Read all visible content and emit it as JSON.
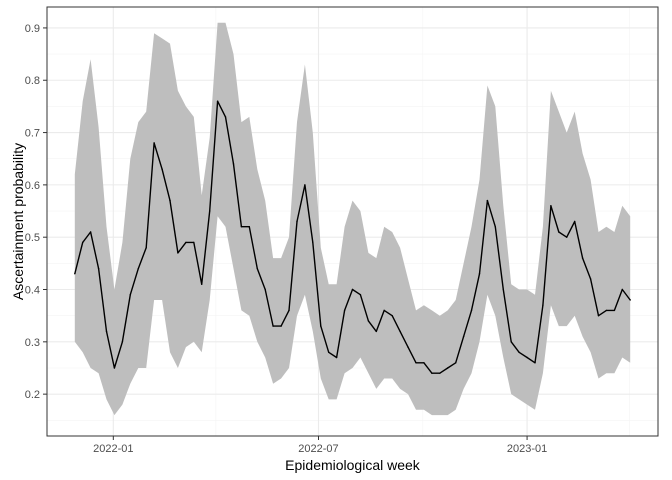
{
  "chart_data": {
    "type": "line",
    "xlabel": "Epidemiological week",
    "ylabel": "Ascertainment probability",
    "x_start": "2021-11-28",
    "x_step_days": 7,
    "x_ticks": [
      {
        "date": "2022-01-01",
        "label": "2022-01"
      },
      {
        "date": "2022-07-01",
        "label": "2022-07"
      },
      {
        "date": "2023-01-01",
        "label": "2023-01"
      }
    ],
    "y_ticks": [
      0.2,
      0.3,
      0.4,
      0.5,
      0.6,
      0.7,
      0.8,
      0.9
    ],
    "ylim": [
      0.12,
      0.94
    ],
    "grid": true,
    "colors": {
      "ribbon": "#bebebe",
      "line": "#000000",
      "panel_border": "#333333",
      "grid_major": "#ebebeb",
      "grid_minor": "#f4f4f4"
    },
    "series": [
      {
        "values": [
          0.43,
          0.49,
          0.51,
          0.44,
          0.32,
          0.25,
          0.3,
          0.39,
          0.44,
          0.48,
          0.68,
          0.63,
          0.57,
          0.47,
          0.49,
          0.49,
          0.41,
          0.55,
          0.76,
          0.73,
          0.64,
          0.52,
          0.52,
          0.44,
          0.4,
          0.33,
          0.33,
          0.36,
          0.53,
          0.6,
          0.49,
          0.33,
          0.28,
          0.27,
          0.36,
          0.4,
          0.39,
          0.34,
          0.32,
          0.36,
          0.35,
          0.32,
          0.29,
          0.26,
          0.26,
          0.24,
          0.24,
          0.25,
          0.26,
          0.31,
          0.36,
          0.43,
          0.57,
          0.52,
          0.4,
          0.3,
          0.28,
          0.27,
          0.26,
          0.37,
          0.56,
          0.51,
          0.5,
          0.53,
          0.46,
          0.42,
          0.35,
          0.36,
          0.36,
          0.4,
          0.38
        ],
        "lower": [
          0.3,
          0.28,
          0.25,
          0.24,
          0.19,
          0.16,
          0.18,
          0.22,
          0.25,
          0.25,
          0.38,
          0.38,
          0.28,
          0.25,
          0.29,
          0.3,
          0.28,
          0.38,
          0.54,
          0.52,
          0.44,
          0.36,
          0.35,
          0.3,
          0.27,
          0.22,
          0.23,
          0.25,
          0.35,
          0.39,
          0.32,
          0.23,
          0.19,
          0.19,
          0.24,
          0.25,
          0.27,
          0.24,
          0.21,
          0.23,
          0.23,
          0.21,
          0.2,
          0.17,
          0.17,
          0.16,
          0.16,
          0.16,
          0.17,
          0.21,
          0.24,
          0.3,
          0.39,
          0.35,
          0.27,
          0.2,
          0.19,
          0.18,
          0.17,
          0.24,
          0.37,
          0.33,
          0.33,
          0.35,
          0.31,
          0.28,
          0.23,
          0.24,
          0.24,
          0.27,
          0.26
        ],
        "upper": [
          0.62,
          0.76,
          0.84,
          0.71,
          0.52,
          0.4,
          0.49,
          0.65,
          0.72,
          0.74,
          0.89,
          0.88,
          0.87,
          0.78,
          0.75,
          0.73,
          0.58,
          0.69,
          0.91,
          0.91,
          0.85,
          0.72,
          0.73,
          0.63,
          0.57,
          0.46,
          0.46,
          0.5,
          0.72,
          0.83,
          0.7,
          0.48,
          0.41,
          0.41,
          0.52,
          0.57,
          0.55,
          0.47,
          0.46,
          0.52,
          0.51,
          0.48,
          0.42,
          0.36,
          0.37,
          0.36,
          0.35,
          0.36,
          0.38,
          0.45,
          0.52,
          0.61,
          0.79,
          0.75,
          0.56,
          0.41,
          0.4,
          0.4,
          0.39,
          0.52,
          0.78,
          0.74,
          0.7,
          0.74,
          0.66,
          0.61,
          0.51,
          0.52,
          0.51,
          0.56,
          0.54
        ]
      }
    ]
  }
}
